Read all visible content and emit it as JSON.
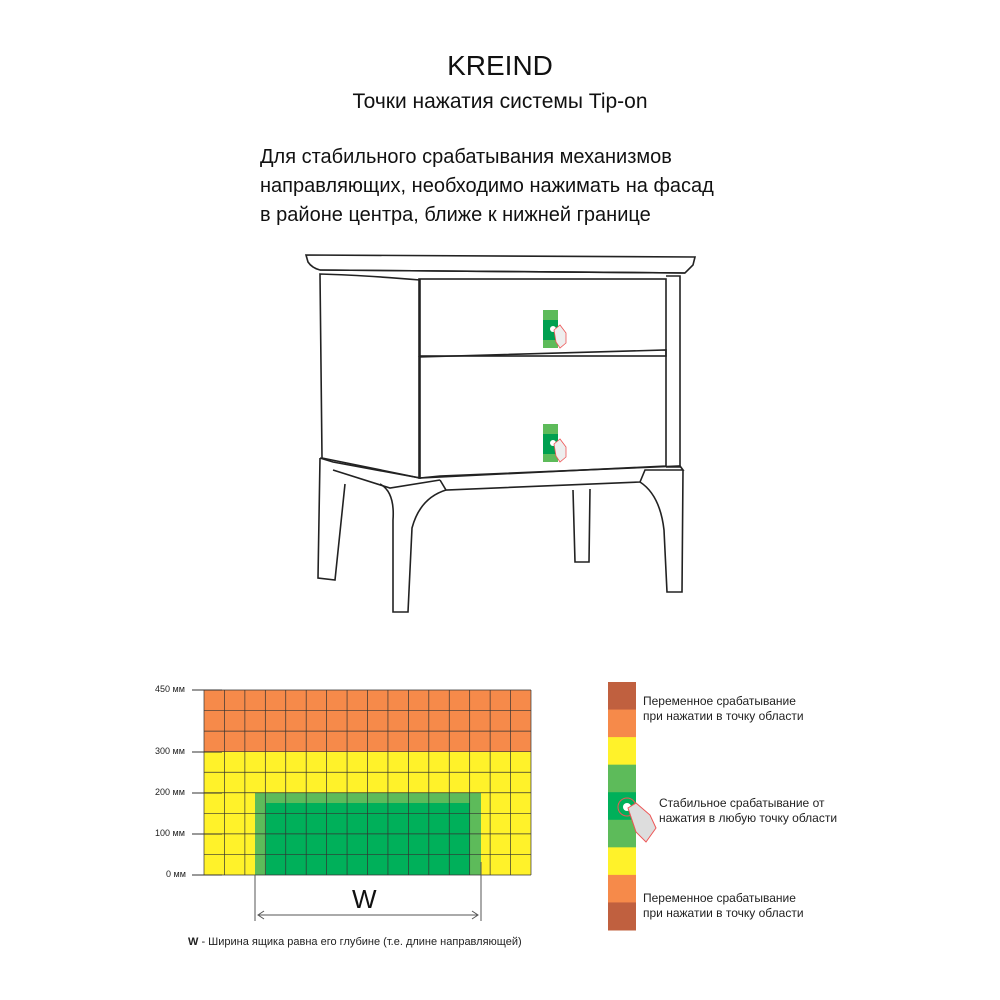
{
  "header": {
    "brand": "KREIND",
    "subtitle": "Точки нажатия системы Tip-on"
  },
  "note": {
    "lines": [
      "Для стабильного срабатывания механизмов",
      "направляющих, необходимо нажимать на фасад",
      "в районе центра, ближе к нижней границе"
    ]
  },
  "diagram": {
    "y_axis_labels": [
      "450 мм",
      "300 мм",
      "200 мм",
      "100 мм",
      "0 мм"
    ],
    "width_label": "W",
    "caption_bold": "W",
    "caption_text": " - Ширина ящика равна его глубине (т.е. длине направляющей)",
    "colors": {
      "orange": "#F68A4A",
      "yellow": "#FFF22A",
      "light_green": "#5DBB5A",
      "dark_green": "#00B05A",
      "brown": "#C0603F"
    }
  },
  "legend": {
    "variable_top": [
      "Переменное срабатывание",
      "при нажатии в точку области"
    ],
    "stable": [
      "Стабильное срабатывание от",
      "нажатия в любую точку области"
    ],
    "variable_bottom": [
      "Переменное срабатывание",
      "при нажатии в точку области"
    ],
    "icon": "pointing-hand-icon"
  }
}
